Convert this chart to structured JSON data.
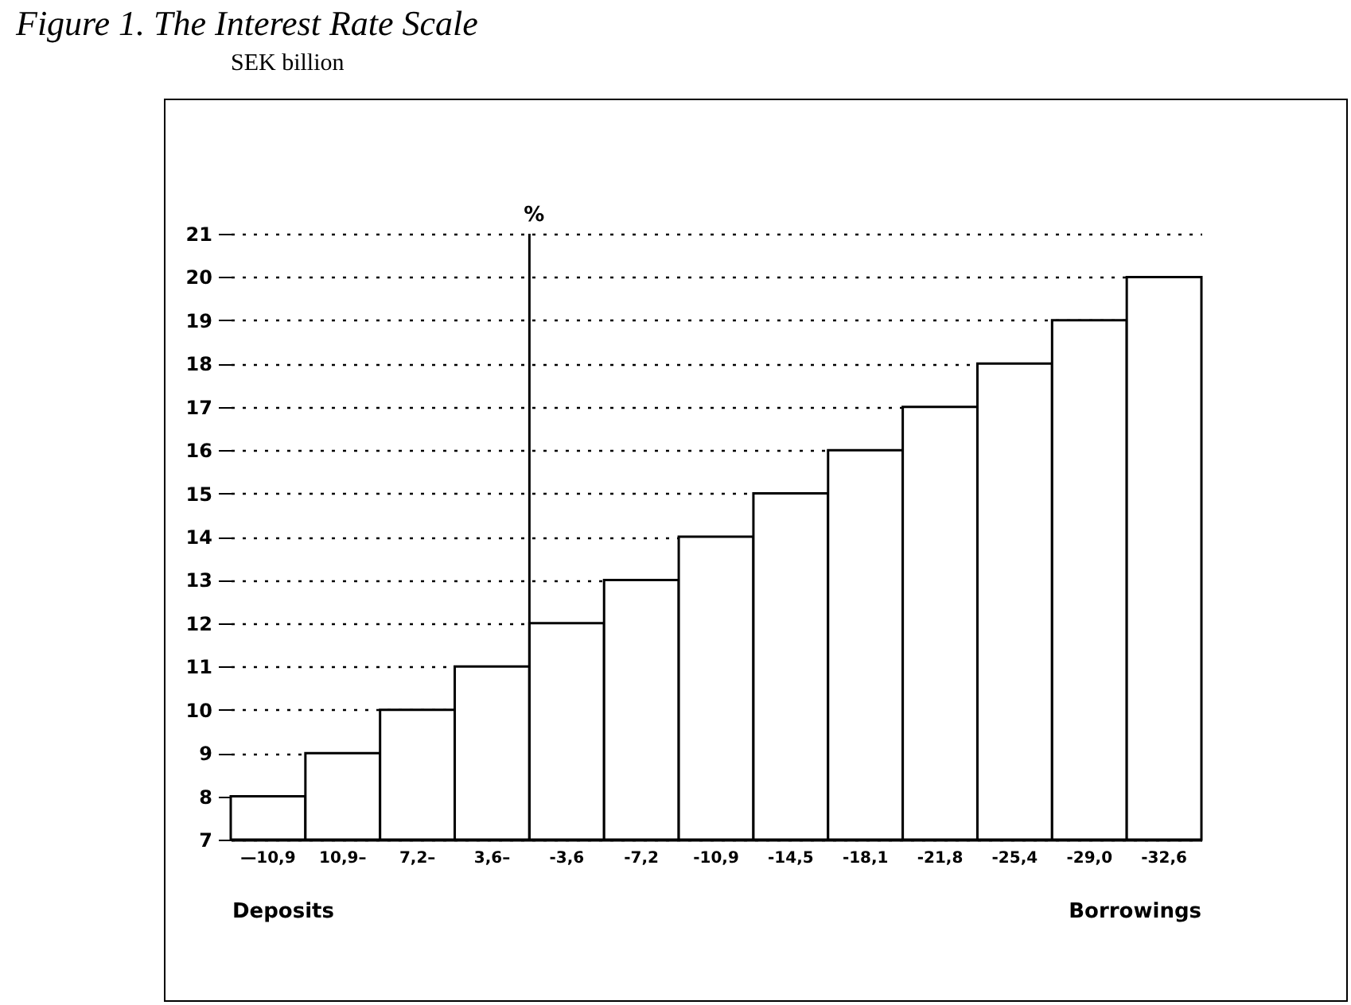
{
  "chart_data": {
    "type": "bar",
    "title": "Figure 1. The Interest Rate Scale",
    "subtitle": "SEK billion",
    "categories": [
      "—10,9",
      "10,9–",
      "7,2–",
      "3,6–",
      "-3,6",
      "-7,2",
      "-10,9",
      "-14,5",
      "-18,1",
      "-21,8",
      "-25,4",
      "-29,0",
      "-32,6"
    ],
    "values": [
      8,
      9,
      10,
      11,
      12,
      13,
      14,
      15,
      16,
      17,
      18,
      19,
      20
    ],
    "color": "#ffffff",
    "ylim": [
      7,
      21
    ],
    "yticks": [
      7,
      8,
      9,
      10,
      11,
      12,
      13,
      14,
      15,
      16,
      17,
      18,
      19,
      20,
      21
    ],
    "grid": "y",
    "ref_lines": [
      {
        "axis": "x",
        "value": "-3,6",
        "label": "%"
      }
    ],
    "annotations": [
      "Deposits",
      "Borrowings"
    ]
  }
}
